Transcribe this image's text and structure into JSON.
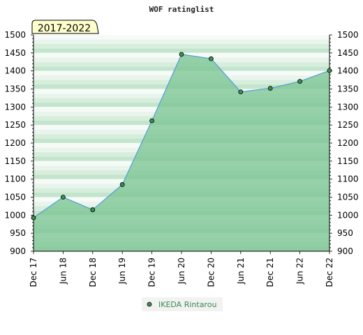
{
  "chart_data": {
    "type": "area",
    "title": "WOF ratinglist",
    "period_badge": "2017-2022",
    "x_labels": [
      "Dec 17",
      "Jun 18",
      "Dec 18",
      "Jun 19",
      "Dec 19",
      "Jun 20",
      "Dec 20",
      "Jun 21",
      "Dec 21",
      "Jun 22",
      "Dec 22"
    ],
    "y_ticks": [
      900,
      950,
      1000,
      1050,
      1100,
      1150,
      1200,
      1250,
      1300,
      1350,
      1400,
      1450,
      1500
    ],
    "ylim": [
      900,
      1500
    ],
    "grid": true,
    "legend_position": "bottom-center",
    "series": [
      {
        "name": "IKEDA Rintarou",
        "values": [
          993,
          1050,
          1015,
          1085,
          1262,
          1446,
          1434,
          1342,
          1352,
          1371,
          1401
        ]
      }
    ],
    "colors": {
      "line": "#5aa0d8",
      "fill": "#7cc593",
      "marker": "#3d8f4f",
      "badge_bg": "#ffffcc"
    }
  }
}
